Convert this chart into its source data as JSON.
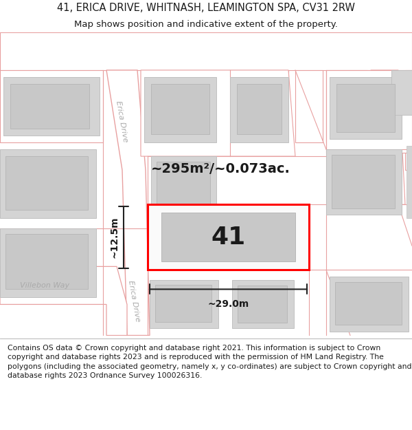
{
  "title_line1": "41, ERICA DRIVE, WHITNASH, LEAMINGTON SPA, CV31 2RW",
  "title_line2": "Map shows position and indicative extent of the property.",
  "footer_text": "Contains OS data © Crown copyright and database right 2021. This information is subject to Crown copyright and database rights 2023 and is reproduced with the permission of HM Land Registry. The polygons (including the associated geometry, namely x, y co-ordinates) are subject to Crown copyright and database rights 2023 Ordnance Survey 100026316.",
  "map_bg": "#f0efef",
  "white": "#ffffff",
  "road_stroke": "#e8a0a0",
  "road_stroke_dark": "#d07070",
  "bld_fill": "#d4d4d4",
  "bld_stroke": "#c0c0c0",
  "bld_inner_fill": "#c8c8c8",
  "bld_inner_stroke": "#b0b0b0",
  "highlight_color": "#ff0000",
  "measure_color": "#222222",
  "text_dark": "#1a1a1a",
  "text_road": "#999999",
  "title_fs": 10.5,
  "subtitle_fs": 9.5,
  "footer_fs": 7.8,
  "area_label": "~295m²/~0.073ac.",
  "width_label": "~29.0m",
  "height_label": "~12.5m",
  "label_41": "41"
}
